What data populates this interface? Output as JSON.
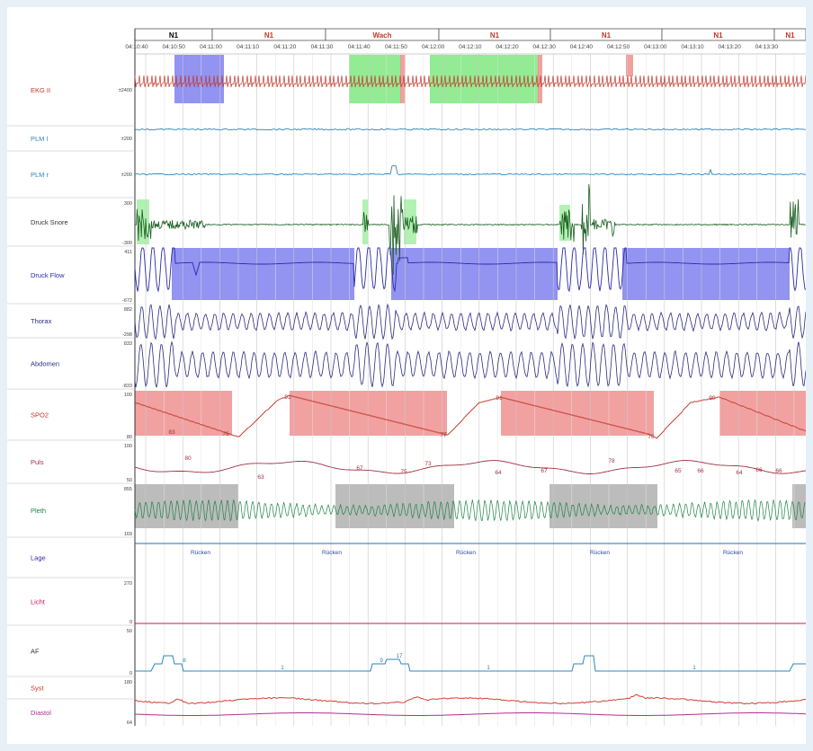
{
  "stages": [
    "N1",
    "N1",
    "Wach",
    "N1",
    "N1",
    "N1",
    "N1"
  ],
  "stage_colors": [
    "#000000",
    "#c0392b",
    "#c0392b",
    "#c0392b",
    "#c0392b",
    "#c0392b",
    "#c0392b"
  ],
  "time_labels": [
    "04:10:40",
    "04:10:50",
    "04:11:00",
    "04:11:10",
    "04:11:20",
    "04:11:30",
    "04:11:40",
    "04:11:50",
    "04:12:00",
    "04:12:10",
    "04:12:20",
    "04:12:30",
    "04:12:40",
    "04:12:50",
    "04:13:00",
    "04:13:10",
    "04:13:20",
    "04:13:30"
  ],
  "channels": [
    {
      "name": "EKG II",
      "color": "#c0392b",
      "scale_top": "",
      "scale_mid": "±2400",
      "scale_bot": ""
    },
    {
      "name": "PLM l",
      "color": "#2e86c1",
      "scale_top": "",
      "scale_mid": "±200",
      "scale_bot": ""
    },
    {
      "name": "PLM r",
      "color": "#2e86c1",
      "scale_top": "",
      "scale_mid": "±200",
      "scale_bot": ""
    },
    {
      "name": "Druck Snore",
      "color": "#333333",
      "scale_top": "300",
      "scale_mid": "",
      "scale_bot": "-300"
    },
    {
      "name": "Druck Flow",
      "color": "#2c2ca8",
      "scale_top": "411",
      "scale_mid": "",
      "scale_bot": "-672"
    },
    {
      "name": "Thorax",
      "color": "#2c2c80",
      "scale_top": "882",
      "scale_mid": "",
      "scale_bot": "-298"
    },
    {
      "name": "Abdomen",
      "color": "#2c2c80",
      "scale_top": "833",
      "scale_mid": "",
      "scale_bot": "-833"
    },
    {
      "name": "SPO2",
      "color": "#c0392b",
      "scale_top": "100",
      "scale_mid": "",
      "scale_bot": "80"
    },
    {
      "name": "Puls",
      "color": "#a03040",
      "scale_top": "100",
      "scale_mid": "",
      "scale_bot": "50"
    },
    {
      "name": "Pleth",
      "color": "#1e8449",
      "scale_top": "855",
      "scale_mid": "",
      "scale_bot": "169"
    },
    {
      "name": "Lage",
      "color": "#2c2ca8",
      "scale_top": "",
      "scale_mid": "",
      "scale_bot": ""
    },
    {
      "name": "Licht",
      "color": "#c2185b",
      "scale_top": "270",
      "scale_mid": "",
      "scale_bot": "0"
    },
    {
      "name": "AF",
      "color": "#333333",
      "scale_top": "50",
      "scale_mid": "",
      "scale_bot": "0"
    },
    {
      "name": "Syst",
      "color": "#c0392b",
      "scale_top": "180",
      "scale_mid": "",
      "scale_bot": ""
    },
    {
      "name": "Diastol",
      "color": "#b03090",
      "scale_top": "",
      "scale_mid": "",
      "scale_bot": "64"
    }
  ],
  "spo2_values": [
    "83",
    "76",
    "91",
    "77",
    "91",
    "76",
    "90"
  ],
  "pulse_values": [
    "80",
    "63",
    "67",
    "75",
    "73",
    "64",
    "67",
    "78",
    "65",
    "66",
    "64",
    "66",
    "66"
  ],
  "lage_values": [
    "Rücken",
    "Rücken",
    "Rücken",
    "Rücken",
    "Rücken"
  ],
  "af_values": [
    "8",
    "1",
    "9",
    "17",
    "1",
    "1"
  ],
  "colors": {
    "blue_event": "#8080f0",
    "green_event": "#80e880",
    "red_event": "#f09090",
    "gray_event": "#b0b0b0",
    "grid": "#c8c8c8"
  }
}
